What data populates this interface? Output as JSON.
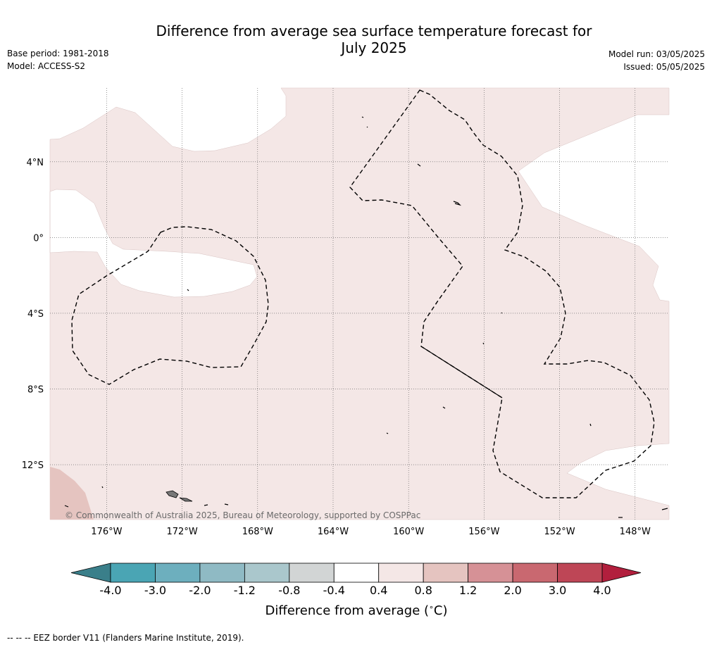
{
  "title": "Difference from average sea surface temperature forecast for July 2025",
  "title_line1": "Difference from average sea surface temperature forecast for",
  "title_line2": "July 2025",
  "base_period": "Base period: 1981-2018",
  "model": "Model: ACCESS-S2",
  "model_run": "Model run: 03/05/2025",
  "issued": "Issued: 05/05/2025",
  "copyright": "© Commonwealth of Australia 2025, Bureau of Meteorology, supported by COSPPac",
  "footnote": "--  --  -- EEZ border V11 (Flanders Marine Institute, 2019).",
  "chart_data": {
    "type": "heatmap",
    "map_extent": {
      "lon": [
        -179,
        -146.2
      ],
      "lat": [
        -14.9,
        7.9
      ]
    },
    "x_ticks": [
      {
        "lon": -176,
        "label": "176°W"
      },
      {
        "lon": -172,
        "label": "172°W"
      },
      {
        "lon": -168,
        "label": "168°W"
      },
      {
        "lon": -164,
        "label": "164°W"
      },
      {
        "lon": -160,
        "label": "160°W"
      },
      {
        "lon": -156,
        "label": "156°W"
      },
      {
        "lon": -152,
        "label": "152°W"
      },
      {
        "lon": -148,
        "label": "148°W"
      }
    ],
    "y_ticks": [
      {
        "lat": 4,
        "label": "4°N"
      },
      {
        "lat": 0,
        "label": "0°"
      },
      {
        "lat": -4,
        "label": "4°S"
      },
      {
        "lat": -8,
        "label": "8°S"
      },
      {
        "lat": -12,
        "label": "12°S"
      }
    ],
    "grid": true,
    "colorbar": {
      "label": "Difference from average (°C)",
      "label_main": "Difference from average (",
      "label_unit": "C)",
      "ticks": [
        "-4.0",
        "-3.0",
        "-2.0",
        "-1.2",
        "-0.8",
        "-0.4",
        "0.4",
        "0.8",
        "1.2",
        "2.0",
        "3.0",
        "4.0"
      ],
      "bins": [
        {
          "from": null,
          "to": -4.0,
          "color": "#3a7f8a"
        },
        {
          "from": -4.0,
          "to": -3.0,
          "color": "#4aa5b4"
        },
        {
          "from": -3.0,
          "to": -2.0,
          "color": "#6dafbe"
        },
        {
          "from": -2.0,
          "to": -1.2,
          "color": "#8fbac4"
        },
        {
          "from": -1.2,
          "to": -0.8,
          "color": "#aac7cc"
        },
        {
          "from": -0.8,
          "to": -0.4,
          "color": "#d2d5d5"
        },
        {
          "from": -0.4,
          "to": 0.4,
          "color": "#ffffff"
        },
        {
          "from": 0.4,
          "to": 0.8,
          "color": "#f4e7e6"
        },
        {
          "from": 0.8,
          "to": 1.2,
          "color": "#e5c4c0"
        },
        {
          "from": 1.2,
          "to": 2.0,
          "color": "#d69196"
        },
        {
          "from": 2.0,
          "to": 3.0,
          "color": "#c96870"
        },
        {
          "from": 3.0,
          "to": 4.0,
          "color": "#be4656"
        },
        {
          "from": 4.0,
          "to": null,
          "color": "#b21f3d"
        }
      ]
    },
    "regions": [
      {
        "category": "-0.4 to 0.4",
        "color": "#ffffff"
      },
      {
        "category": "0.4 to 0.8",
        "color": "#f4e7e6"
      },
      {
        "category": "0.8 to 1.2",
        "color": "#e5c4c0"
      }
    ]
  }
}
